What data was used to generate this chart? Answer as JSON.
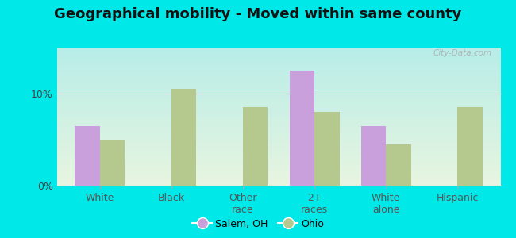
{
  "title": "Geographical mobility - Moved within same county",
  "categories": [
    "White",
    "Black",
    "Other\nrace",
    "2+\nraces",
    "White\nalone",
    "Hispanic"
  ],
  "salem_values": [
    6.5,
    0.0,
    0.0,
    12.5,
    6.5,
    0.0
  ],
  "ohio_values": [
    5.0,
    10.5,
    8.5,
    8.0,
    4.5,
    8.5
  ],
  "salem_color": "#c9a0dc",
  "ohio_color": "#b5c98e",
  "bar_width": 0.35,
  "ylim": [
    0,
    15
  ],
  "yticks": [
    0,
    10
  ],
  "ytick_labels": [
    "0%",
    "10%"
  ],
  "legend_labels": [
    "Salem, OH",
    "Ohio"
  ],
  "outer_background": "#00e8e8",
  "grid_color": "#cccccc",
  "watermark": "City-Data.com",
  "title_fontsize": 13,
  "tick_fontsize": 9
}
